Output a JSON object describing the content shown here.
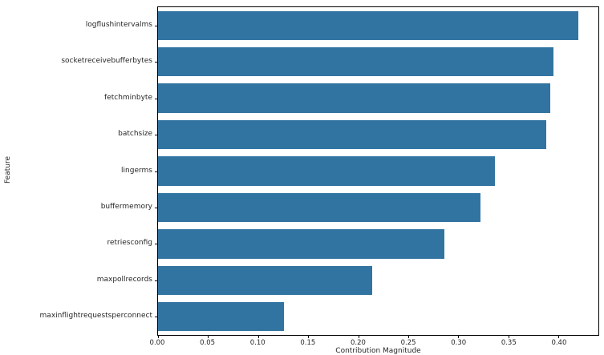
{
  "chart_data": {
    "type": "bar",
    "orientation": "horizontal",
    "title": "",
    "xlabel": "Contribution Magnitude",
    "ylabel": "Feature",
    "categories": [
      "logflushintervalms",
      "socketreceivebufferbytes",
      "fetchminbyte",
      "batchsize",
      "lingerms",
      "buffermemory",
      "retriesconfig",
      "maxpollrecords",
      "maxinflightrequestsperconnect"
    ],
    "values": [
      0.42,
      0.395,
      0.392,
      0.388,
      0.337,
      0.322,
      0.286,
      0.214,
      0.126
    ],
    "xlim": [
      0.0,
      0.44
    ],
    "xticks": [
      "0.00",
      "0.05",
      "0.10",
      "0.15",
      "0.20",
      "0.25",
      "0.30",
      "0.35",
      "0.40"
    ],
    "bar_color": "#3274a1",
    "grid": false,
    "legend": null,
    "background": "#ffffff"
  }
}
